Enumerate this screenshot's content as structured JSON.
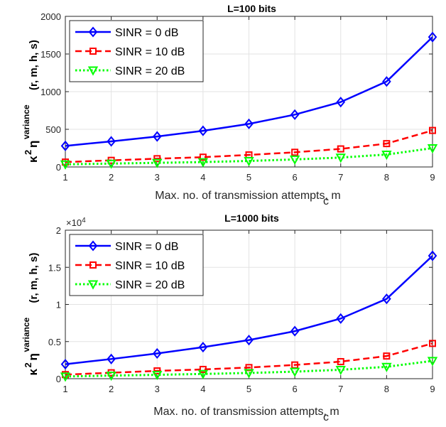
{
  "chart_data": [
    {
      "type": "line",
      "title": "L=100 bits",
      "xlabel": "Max. no. of transmission attempts,  m",
      "xlabel_sub": "c",
      "ylabel_parts": [
        "κ",
        "2",
        "η",
        "variance",
        "(r, m, h, s)"
      ],
      "x": [
        1,
        2,
        3,
        4,
        5,
        6,
        7,
        8,
        9
      ],
      "xlim": [
        1,
        9
      ],
      "ylim": [
        0,
        2000
      ],
      "yticks": [
        0,
        500,
        1000,
        1500,
        2000
      ],
      "ytick_labels": [
        "0",
        "500",
        "1000",
        "1500",
        "2000"
      ],
      "exponent_label": "",
      "grid": true,
      "legend_position": "top-left",
      "series": [
        {
          "name": "SINR = 0 dB",
          "color": "#0000ff",
          "marker": "diamond",
          "line": "solid",
          "values": [
            280,
            340,
            405,
            480,
            572,
            695,
            862,
            1135,
            1725
          ]
        },
        {
          "name": "SINR = 10 dB",
          "color": "#ff0000",
          "marker": "square",
          "line": "dashed",
          "values": [
            65,
            88,
            110,
            130,
            160,
            195,
            240,
            310,
            485
          ]
        },
        {
          "name": "SINR = 20 dB",
          "color": "#00ff00",
          "marker": "triangle-down",
          "line": "dotted",
          "values": [
            35,
            45,
            55,
            65,
            80,
            100,
            125,
            165,
            250
          ]
        }
      ]
    },
    {
      "type": "line",
      "title": "L=1000 bits",
      "xlabel": "Max. no. of transmission attempts, m",
      "xlabel_sub": "c",
      "ylabel_parts": [
        "κ",
        "2",
        "η",
        "variance",
        "(r, m, h, s)"
      ],
      "x": [
        1,
        2,
        3,
        4,
        5,
        6,
        7,
        8,
        9
      ],
      "xlim": [
        1,
        9
      ],
      "ylim": [
        0,
        20000
      ],
      "yticks": [
        0,
        5000,
        10000,
        15000,
        20000
      ],
      "ytick_labels": [
        "0",
        "0.5",
        "1",
        "1.5",
        "2"
      ],
      "exponent_label": "×10^4",
      "grid": true,
      "legend_position": "top-left",
      "series": [
        {
          "name": "SINR = 0 dB",
          "color": "#0000ff",
          "marker": "diamond",
          "line": "solid",
          "values": [
            1950,
            2650,
            3400,
            4250,
            5200,
            6400,
            8100,
            10750,
            16550
          ]
        },
        {
          "name": "SINR = 10 dB",
          "color": "#ff0000",
          "marker": "square",
          "line": "dashed",
          "values": [
            550,
            800,
            1050,
            1250,
            1500,
            1850,
            2300,
            3050,
            4750
          ]
        },
        {
          "name": "SINR = 20 dB",
          "color": "#00ff00",
          "marker": "triangle-down",
          "line": "dotted",
          "values": [
            300,
            420,
            520,
            640,
            770,
            950,
            1200,
            1600,
            2400
          ]
        }
      ]
    }
  ]
}
